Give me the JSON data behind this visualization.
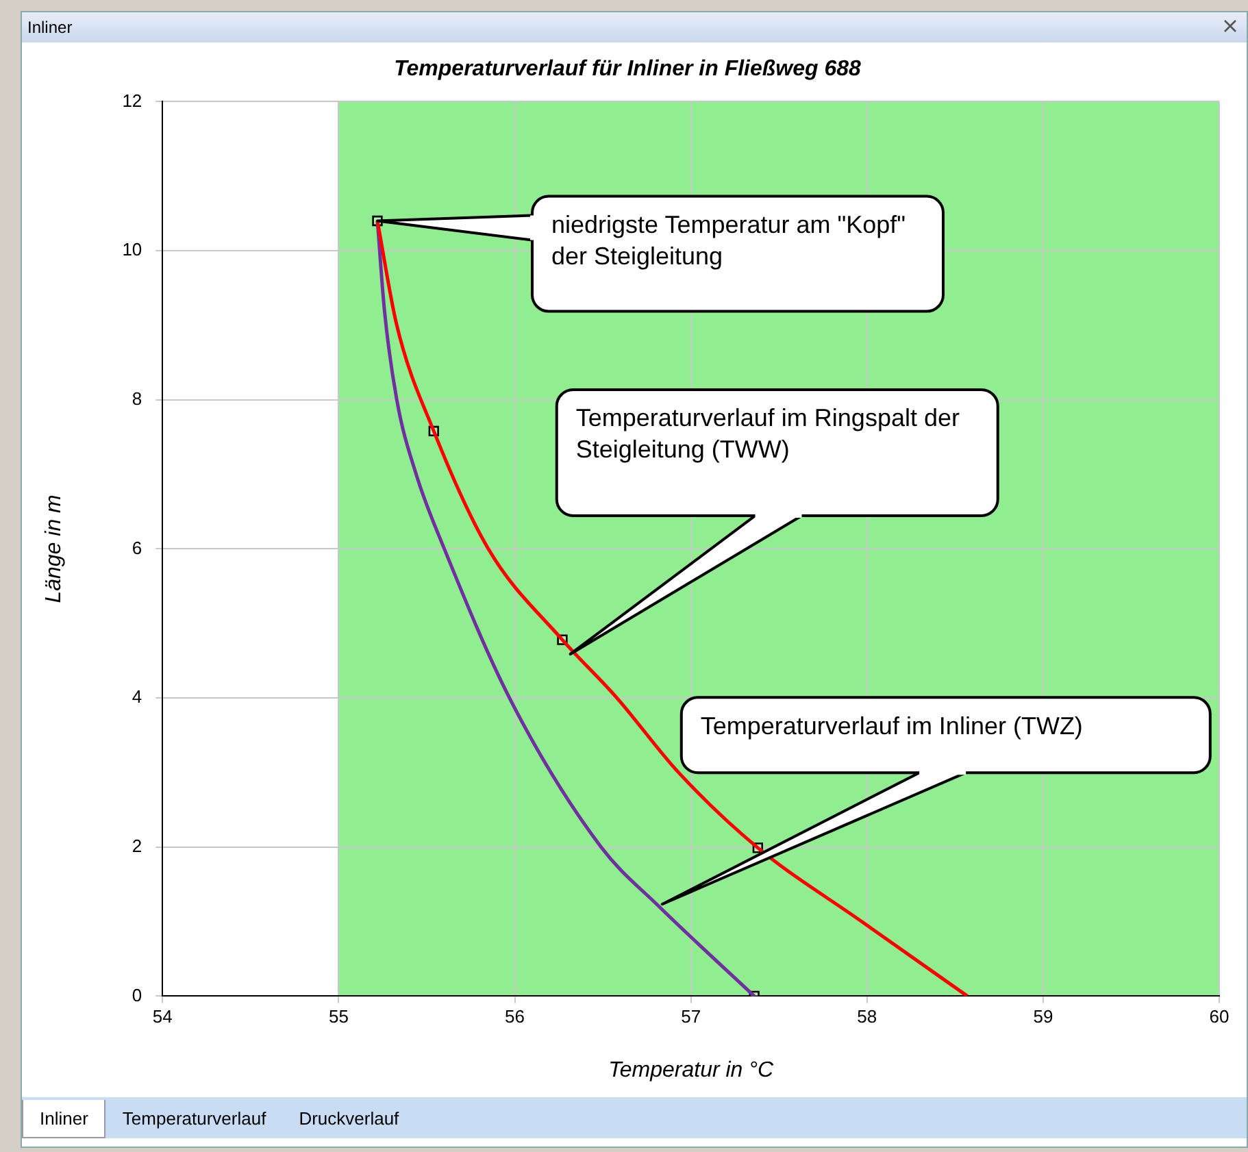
{
  "chart_data": {
    "type": "line",
    "title": "Temperaturverlauf für Inliner in Fließweg 688",
    "xlabel": "Temperatur in °C",
    "ylabel": "Länge in m",
    "xlim": [
      54,
      60
    ],
    "xticks": [
      54,
      55,
      56,
      57,
      58,
      59,
      60
    ],
    "ylim": [
      0,
      12
    ],
    "yticks": [
      0,
      2,
      4,
      6,
      8,
      10,
      12
    ],
    "grid": true,
    "legend": false,
    "marker": "none",
    "bands": [
      {
        "axis": "x",
        "from": 55,
        "to": 60,
        "color": "#90ee90"
      }
    ],
    "series": [
      {
        "color": "#ff0000",
        "x": [
          55.22,
          55.33,
          55.54,
          55.85,
          56.27,
          56.58,
          56.93,
          57.38,
          57.97,
          58.57
        ],
        "values": [
          10.4,
          9,
          7.58,
          6,
          4.78,
          4,
          3,
          1.99,
          1,
          0
        ]
      },
      {
        "color": "#7030a0",
        "x": [
          55.22,
          55.26,
          55.33,
          55.44,
          55.6,
          55.97,
          56.49,
          56.82,
          57.36
        ],
        "values": [
          10.4,
          9.2,
          8,
          7,
          6,
          4,
          2,
          1.2,
          0
        ]
      },
      {
        "type": "scatter",
        "marker": "square",
        "color": "#000000",
        "x": [
          55.22,
          55.54,
          56.27,
          57.38,
          57.36
        ],
        "values": [
          10.4,
          7.58,
          4.78,
          1.99,
          0
        ]
      }
    ],
    "annotations": [
      {
        "text": "niedrigste Temperatur am \"Kopf\" der Steigleitung",
        "x": 55.22,
        "y": 10.4
      },
      "Temperaturverlauf im Ringspalt der Steigleitung (TWW)",
      "Temperaturverlauf im Inliner (TWZ)",
      "Inliner",
      "Inliner",
      "Temperaturverlauf",
      "Druckverlauf"
    ]
  }
}
